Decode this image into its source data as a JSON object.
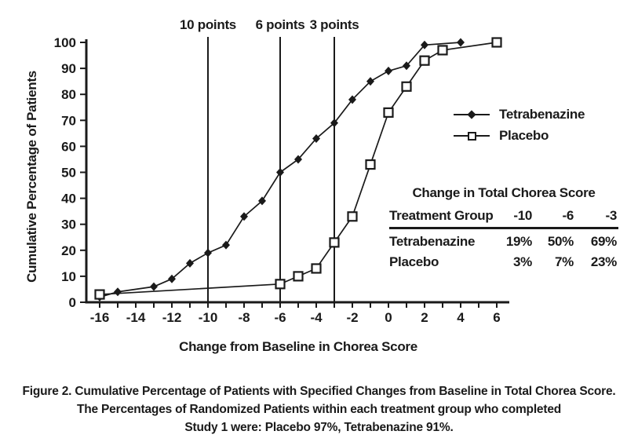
{
  "chart_data": {
    "type": "line",
    "title": "",
    "xlabel": "Change from Baseline in Chorea Score",
    "ylabel": "Cumulative Percentage of Patients",
    "xlim": [
      -16,
      6
    ],
    "ylim": [
      0,
      100
    ],
    "grid": "off",
    "x_major_ticks": [
      -16,
      -14,
      -12,
      -10,
      -8,
      -6,
      -4,
      -2,
      0,
      2,
      4,
      6
    ],
    "x_minor_tick_step": 1,
    "y_ticks": [
      0,
      10,
      20,
      30,
      40,
      50,
      60,
      70,
      80,
      90,
      100
    ],
    "legend_position": "right-center",
    "reference_lines": [
      {
        "x": -10,
        "label": "10 points"
      },
      {
        "x": -6,
        "label": "6 points"
      },
      {
        "x": -3,
        "label": "3 points"
      }
    ],
    "series": [
      {
        "name": "Tetrabenazine",
        "marker": "diamond-filled",
        "points": [
          [
            -16,
            2
          ],
          [
            -15,
            4
          ],
          [
            -13,
            6
          ],
          [
            -12,
            9
          ],
          [
            -11,
            15
          ],
          [
            -10,
            19
          ],
          [
            -9,
            22
          ],
          [
            -8,
            33
          ],
          [
            -7,
            39
          ],
          [
            -6,
            50
          ],
          [
            -5,
            55
          ],
          [
            -4,
            63
          ],
          [
            -3,
            69
          ],
          [
            -2,
            78
          ],
          [
            -1,
            85
          ],
          [
            0,
            89
          ],
          [
            1,
            91
          ],
          [
            2,
            99
          ],
          [
            4,
            100
          ]
        ]
      },
      {
        "name": "Placebo",
        "marker": "square-open",
        "points": [
          [
            -16,
            3
          ],
          [
            -6,
            7
          ],
          [
            -5,
            10
          ],
          [
            -4,
            13
          ],
          [
            -3,
            23
          ],
          [
            -2,
            33
          ],
          [
            -1,
            53
          ],
          [
            0,
            73
          ],
          [
            1,
            83
          ],
          [
            2,
            93
          ],
          [
            3,
            97
          ],
          [
            6,
            100
          ]
        ]
      }
    ]
  },
  "legend": {
    "items": [
      {
        "label": "Tetrabenazine",
        "marker": "diamond-filled"
      },
      {
        "label": "Placebo",
        "marker": "square-open"
      }
    ]
  },
  "inset_table": {
    "title": "Change in Total Chorea Score",
    "header": [
      "Treatment Group",
      "-10",
      "-6",
      "-3"
    ],
    "rows": [
      [
        "Tetrabenazine",
        "19%",
        "50%",
        "69%"
      ],
      [
        "Placebo",
        "3%",
        "7%",
        "23%"
      ]
    ]
  },
  "figure": {
    "y_axis_title": "Cumulative Percentage of Patients",
    "x_axis_title": "Change from Baseline in Chorea Score",
    "caption_line1": "Figure 2. Cumulative Percentage of Patients with Specified Changes from Baseline in Total Chorea Score.",
    "caption_line2": "The Percentages of Randomized Patients within each treatment group who completed",
    "caption_line3": "Study 1 were: Placebo 97%, Tetrabenazine 91%."
  },
  "colors": {
    "ink": "#1a1a1a",
    "background": "#ffffff"
  }
}
